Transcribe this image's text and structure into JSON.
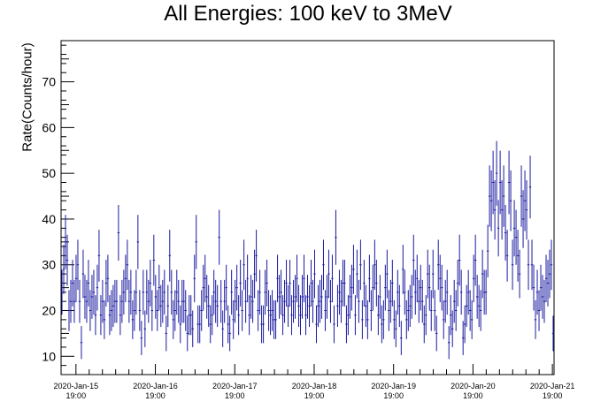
{
  "chart_data": {
    "type": "scatter",
    "title": "All Energies:  100 keV to 3MeV",
    "xlabel": "",
    "ylabel": "Rate(Counts/hour)",
    "ylim": [
      6,
      79
    ],
    "xlim": [
      "2020-01-15 14:30",
      "2020-01-21 19:30"
    ],
    "xrange_hours": [
      -4.5,
      144.5
    ],
    "yticks": [
      10,
      20,
      30,
      40,
      50,
      60,
      70
    ],
    "xtick_labels": [
      {
        "date": "2020-Jan-15",
        "time": "19:00"
      },
      {
        "date": "2020-Jan-16",
        "time": "19:00"
      },
      {
        "date": "2020-Jan-17",
        "time": "19:00"
      },
      {
        "date": "2020-Jan-18",
        "time": "19:00"
      },
      {
        "date": "2020-Jan-19",
        "time": "19:00"
      },
      {
        "date": "2020-Jan-20",
        "time": "19:00"
      },
      {
        "date": "2020-Jan-21",
        "time": "19:00"
      }
    ],
    "grid": false,
    "series": [
      {
        "marker_color": "#1a1aa0",
        "error_bars": "poisson (sqrt(N))",
        "values": [
          24,
          29,
          35,
          31,
          20,
          22,
          26,
          22,
          27,
          30,
          22,
          13,
          28,
          23,
          22,
          26,
          20,
          23,
          24,
          19,
          25,
          32,
          19,
          22,
          18,
          26,
          27,
          19,
          20,
          21,
          22,
          22,
          37,
          19,
          22,
          24,
          27,
          30,
          22,
          24,
          18,
          20,
          24,
          35,
          20,
          14,
          24,
          16,
          24,
          22,
          26,
          20,
          31,
          23,
          20,
          25,
          21,
          22,
          24,
          15,
          21,
          32,
          24,
          18,
          20,
          24,
          22,
          17,
          22,
          22,
          20,
          15,
          19,
          19,
          16,
          27,
          35,
          17,
          17,
          20,
          25,
          27,
          23,
          21,
          17,
          19,
          24,
          22,
          21,
          36,
          22,
          16,
          22,
          25,
          17,
          15,
          24,
          18,
          22,
          25,
          19,
          26,
          20,
          30,
          22,
          27,
          19,
          23,
          22,
          28,
          32,
          20,
          24,
          17,
          17,
          24,
          26,
          20,
          19,
          20,
          18,
          18,
          27,
          23,
          24,
          19,
          22,
          26,
          21,
          26,
          19,
          22,
          23,
          27,
          21,
          19,
          23,
          27,
          19,
          23,
          21,
          26,
          22,
          28,
          17,
          21,
          22,
          23,
          30,
          20,
          23,
          28,
          22,
          27,
          17,
          36,
          21,
          24,
          22,
          26,
          26,
          17,
          19,
          23,
          25,
          29,
          19,
          28,
          22,
          30,
          18,
          26,
          21,
          18,
          27,
          20,
          25,
          30,
          26,
          19,
          23,
          17,
          18,
          25,
          28,
          20,
          22,
          26,
          18,
          16,
          24,
          21,
          14,
          29,
          24,
          18,
          20,
          21,
          23,
          31,
          24,
          27,
          22,
          25,
          22,
          17,
          19,
          28,
          25,
          20,
          28,
          20,
          15,
          30,
          27,
          25,
          18,
          22,
          24,
          13,
          19,
          16,
          22,
          20,
          26,
          31,
          24,
          14,
          17,
          21,
          24,
          20,
          18,
          27,
          31,
          23,
          21,
          20,
          28,
          24,
          24,
          33,
          45,
          44,
          48,
          42,
          50,
          38,
          48,
          42,
          45,
          37,
          32,
          48,
          44,
          30,
          38,
          36,
          32,
          28,
          45,
          40,
          44,
          42,
          30,
          47,
          30,
          25,
          18,
          24,
          20,
          25,
          23,
          22,
          27,
          26,
          28,
          30,
          15
        ]
      }
    ]
  }
}
